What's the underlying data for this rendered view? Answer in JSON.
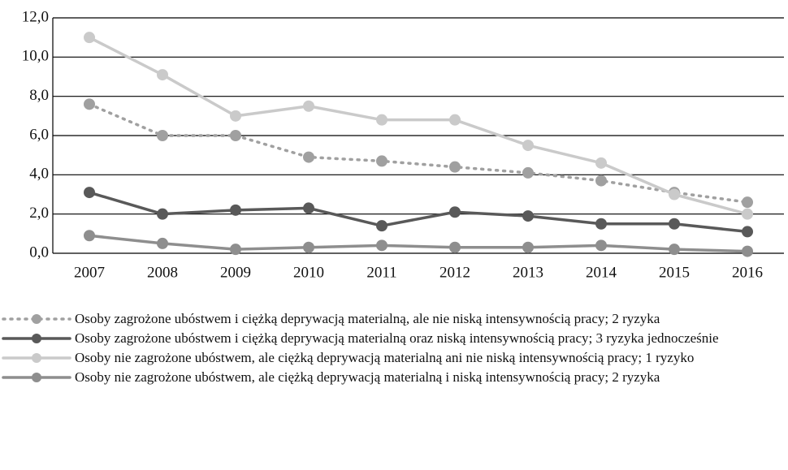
{
  "chart_data": {
    "type": "line",
    "categories": [
      "2007",
      "2008",
      "2009",
      "2010",
      "2011",
      "2012",
      "2013",
      "2014",
      "2015",
      "2016"
    ],
    "series": [
      {
        "name": "Osoby zagrożone ubóstwem i ciężką deprywacją materialną, ale nie niską intensywnością pracy; 2 ryzyka",
        "color": "#a0a0a0",
        "style": "dotted",
        "values": [
          7.6,
          6.0,
          6.0,
          4.9,
          4.7,
          4.4,
          4.1,
          3.7,
          3.1,
          2.6
        ]
      },
      {
        "name": "Osoby zagrożone ubóstwem i ciężką deprywacją materialną oraz niską intensywnością pracy; 3 ryzyka jednocześnie",
        "color": "#595959",
        "style": "solid",
        "values": [
          3.1,
          2.0,
          2.2,
          2.3,
          1.4,
          2.1,
          1.9,
          1.5,
          1.5,
          1.1
        ]
      },
      {
        "name": "Osoby nie zagrożone ubóstwem, ale ciężką deprywacją materialną ani nie niską intensywnością pracy; 1 ryzyko",
        "color": "#cacaca",
        "style": "solid",
        "values": [
          11.0,
          9.1,
          7.0,
          7.5,
          6.8,
          6.8,
          5.5,
          4.6,
          3.0,
          2.0
        ]
      },
      {
        "name": "Osoby nie zagrożone ubóstwem, ale ciężką deprywacją materialną i niską intensywnością pracy; 2 ryzyka",
        "color": "#8e8e8e",
        "style": "solid",
        "values": [
          0.9,
          0.5,
          0.2,
          0.3,
          0.4,
          0.3,
          0.3,
          0.4,
          0.2,
          0.1
        ]
      }
    ],
    "ylim": [
      0,
      12
    ],
    "yticks": [
      {
        "value": 0,
        "label": "0,0"
      },
      {
        "value": 2,
        "label": "2,0"
      },
      {
        "value": 4,
        "label": "4,0"
      },
      {
        "value": 6,
        "label": "6,0"
      },
      {
        "value": 8,
        "label": "8,0"
      },
      {
        "value": 10,
        "label": "10,0"
      },
      {
        "value": 12,
        "label": "12,0"
      }
    ],
    "grid": true
  }
}
